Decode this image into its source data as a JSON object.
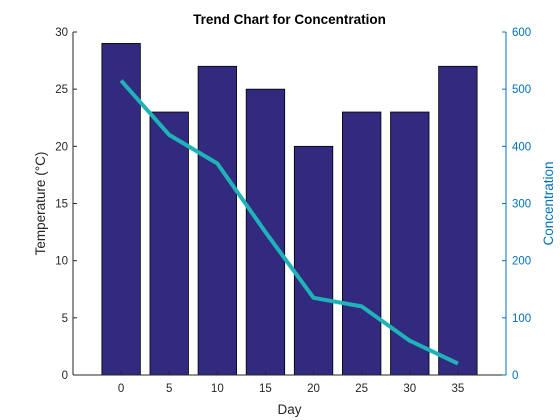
{
  "chart_data": {
    "type": "bar",
    "title": "Trend Chart for Concentration",
    "xlabel": "Day",
    "categories": [
      "0",
      "5",
      "10",
      "15",
      "20",
      "25",
      "30",
      "35"
    ],
    "x": [
      0,
      5,
      10,
      15,
      20,
      25,
      30,
      35
    ],
    "series": [
      {
        "type": "bar",
        "axis": "left",
        "values": [
          29,
          23,
          27,
          25,
          20,
          23,
          23,
          27
        ],
        "color": "#312a7f"
      },
      {
        "type": "line",
        "axis": "right",
        "values": [
          515,
          420,
          370,
          250,
          135,
          120,
          60,
          20
        ],
        "color": "#1fb3b9"
      }
    ],
    "y_left": {
      "label": "Temperature (°C)",
      "lim": [
        0,
        30
      ],
      "ticks": [
        "0",
        "5",
        "10",
        "15",
        "20",
        "25",
        "30"
      ],
      "color": "#262626"
    },
    "y_right": {
      "label": "Concentration",
      "lim": [
        0,
        600
      ],
      "ticks": [
        "0",
        "100",
        "200",
        "300",
        "400",
        "500",
        "600"
      ],
      "color": "#0072bd"
    },
    "grid": false
  }
}
